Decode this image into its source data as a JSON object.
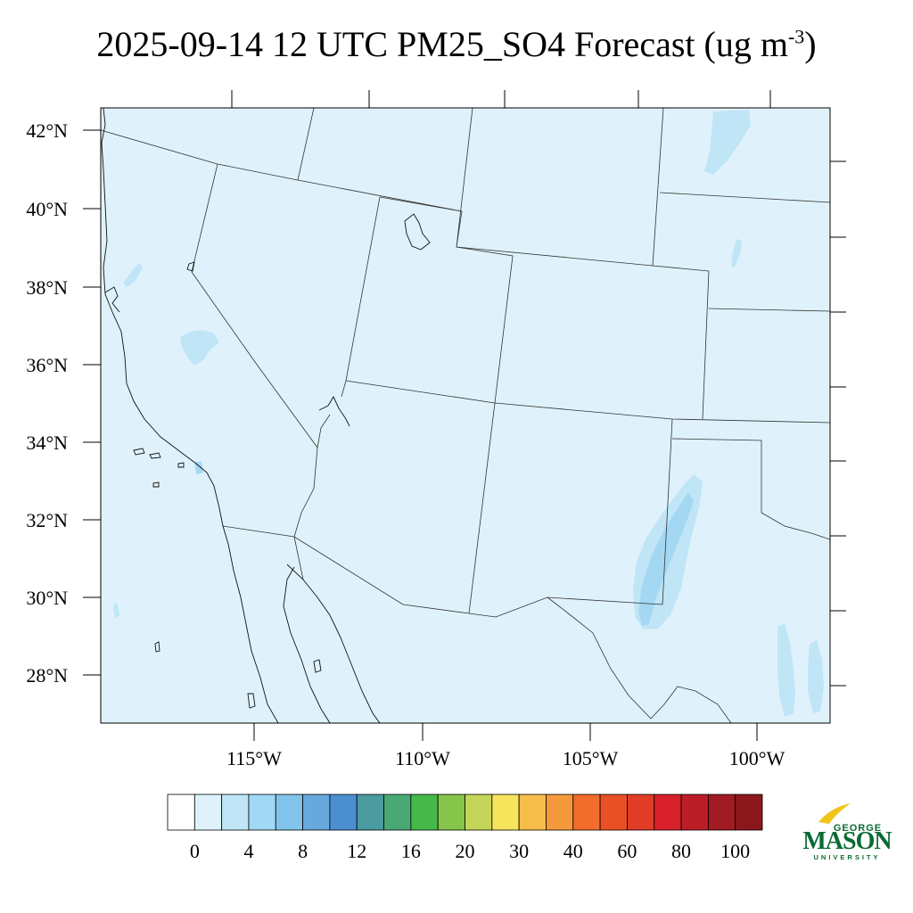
{
  "title": {
    "text": "2025-09-14 12 UTC PM25_SO4 Forecast (ug m",
    "superscript": "-3",
    "close": ")"
  },
  "map": {
    "lat_labels": [
      "42°N",
      "40°N",
      "38°N",
      "36°N",
      "34°N",
      "32°N",
      "30°N",
      "28°N"
    ],
    "lon_labels": [
      "115°W",
      "110°W",
      "105°W",
      "100°W"
    ],
    "background_color": "#dff2fb",
    "field_colors": [
      "#bfe5f7",
      "#a4d8f2"
    ]
  },
  "colorbar": {
    "colors": [
      "#ffffff",
      "#dff2fb",
      "#bfe5f7",
      "#a1d8f4",
      "#82c3ea",
      "#67a9dd",
      "#4a8fd0",
      "#4a9aa0",
      "#4aa874",
      "#47b84a",
      "#86c44a",
      "#c3d659",
      "#f6e45c",
      "#f7bd4a",
      "#f59a3c",
      "#f26c2b",
      "#ea5026",
      "#e13c26",
      "#d8202b",
      "#bc1e27",
      "#a31b22",
      "#8c171b"
    ],
    "labels": [
      "0",
      "4",
      "8",
      "12",
      "16",
      "20",
      "30",
      "40",
      "60",
      "80",
      "100"
    ]
  },
  "logo": {
    "line1": "GEORGE",
    "line2": "MASON",
    "line3": "UNIVERSITY"
  }
}
